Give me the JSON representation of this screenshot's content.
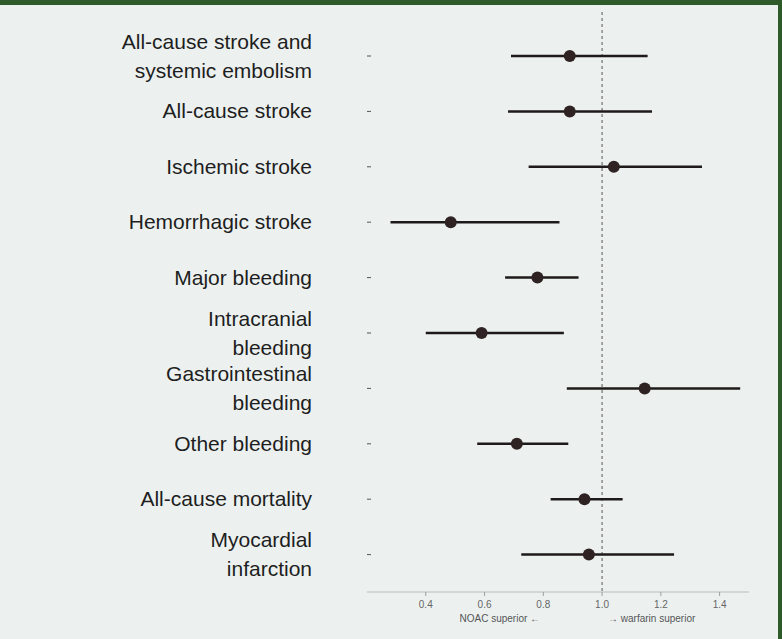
{
  "chart_data": {
    "type": "forest",
    "categories": [
      "All-cause stroke and systemic embolism",
      "All-cause stroke",
      "Ischemic stroke",
      "Hemorrhagic stroke",
      "Major bleeding",
      "Intracranial bleeding",
      "Gastrointestinal bleeding",
      "Other bleeding",
      "All-cause mortality",
      "Myocardial infarction"
    ],
    "values": [
      0.89,
      0.89,
      1.04,
      0.485,
      0.78,
      0.59,
      1.145,
      0.71,
      0.94,
      0.955
    ],
    "ci_lower": [
      0.69,
      0.68,
      0.75,
      0.28,
      0.67,
      0.4,
      0.88,
      0.575,
      0.825,
      0.725
    ],
    "ci_upper": [
      1.155,
      1.17,
      1.34,
      0.855,
      0.92,
      0.87,
      1.47,
      0.885,
      1.07,
      1.245
    ],
    "xlim": [
      0.2,
      1.5
    ],
    "xticks": [
      0.4,
      0.6,
      0.8,
      {
        "value": 1,
        "label": "1.0"
      },
      1.2,
      1.4
    ],
    "reference_line": 1,
    "annotations": [
      "NOAC superior ←",
      "→ warfarin superior"
    ],
    "color": "#2e2222"
  }
}
